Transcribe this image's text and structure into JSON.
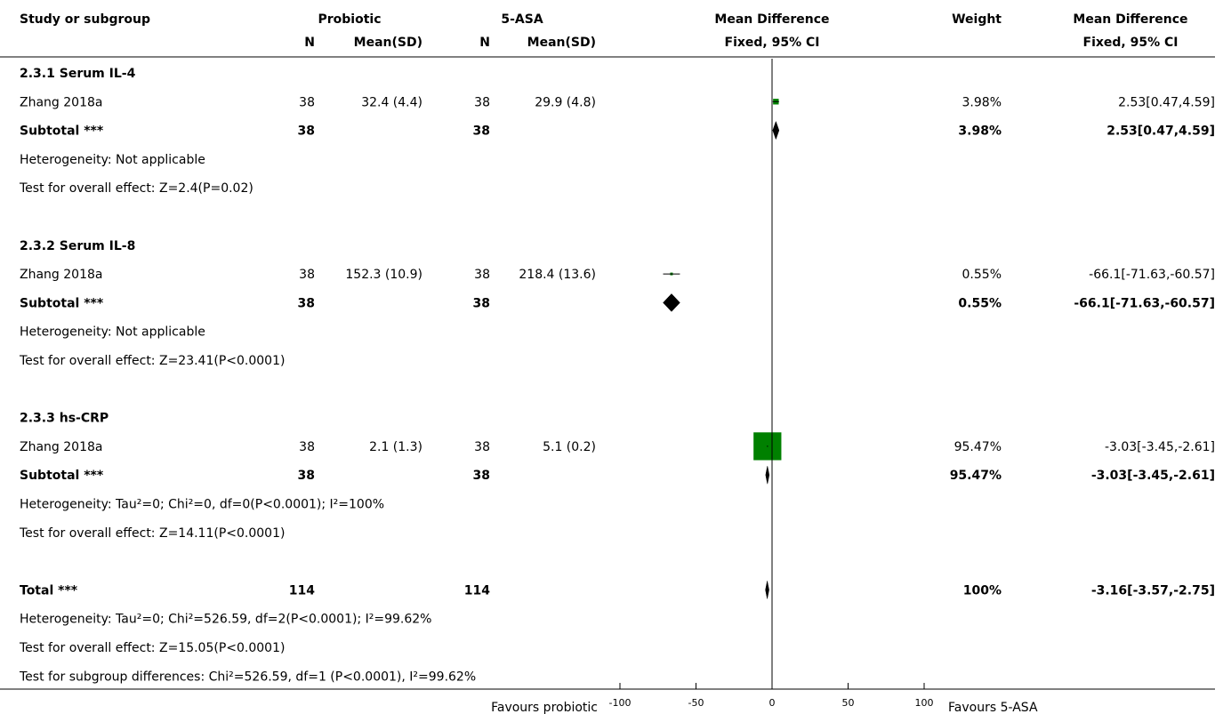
{
  "header": {
    "study": "Study or subgroup",
    "group1": "Probiotic",
    "group2": "5-ASA",
    "n": "N",
    "meansd": "Mean(SD)",
    "effect": "Mean Difference",
    "effect_sub": "Fixed, 95% CI",
    "weight": "Weight",
    "effect2": "Mean Difference",
    "effect2_sub": "Fixed, 95% CI"
  },
  "chart_data": {
    "type": "forest",
    "xlim": [
      -100,
      100
    ],
    "xticks": [
      "-100",
      "-50",
      "0",
      "50",
      "100"
    ],
    "favours_left": "Favours probiotic",
    "favours_right": "Favours 5-ASA",
    "rows": [
      {
        "kind": "group",
        "label": "2.3.1 Serum IL-4"
      },
      {
        "kind": "study",
        "label": "Zhang 2018a",
        "n1": "38",
        "m1": "32.4 (4.4)",
        "n2": "38",
        "m2": "29.9 (4.8)",
        "md": 2.53,
        "lo": 0.47,
        "hi": 4.59,
        "weight": "3.98%",
        "weight_val": 3.98,
        "ci": "2.53[0.47,4.59]"
      },
      {
        "kind": "subtotal",
        "label": "Subtotal ***",
        "n1": "38",
        "n2": "38",
        "md": 2.53,
        "lo": 0.47,
        "hi": 4.59,
        "weight": "3.98%",
        "ci": "2.53[0.47,4.59]"
      },
      {
        "kind": "note",
        "label": "Heterogeneity: Not applicable"
      },
      {
        "kind": "note",
        "label": "Test for overall effect: Z=2.4(P=0.02)"
      },
      {
        "kind": "spacer"
      },
      {
        "kind": "group",
        "label": "2.3.2 Serum IL-8"
      },
      {
        "kind": "study",
        "label": "Zhang 2018a",
        "n1": "38",
        "m1": "152.3 (10.9)",
        "n2": "38",
        "m2": "218.4 (13.6)",
        "md": -66.1,
        "lo": -71.63,
        "hi": -60.57,
        "weight": "0.55%",
        "weight_val": 0.55,
        "ci": "-66.1[-71.63,-60.57]"
      },
      {
        "kind": "subtotal",
        "label": "Subtotal ***",
        "n1": "38",
        "n2": "38",
        "md": -66.1,
        "lo": -71.63,
        "hi": -60.57,
        "weight": "0.55%",
        "ci": "-66.1[-71.63,-60.57]"
      },
      {
        "kind": "note",
        "label": "Heterogeneity: Not applicable"
      },
      {
        "kind": "note",
        "label": "Test for overall effect: Z=23.41(P<0.0001)"
      },
      {
        "kind": "spacer"
      },
      {
        "kind": "group",
        "label": "2.3.3 hs-CRP"
      },
      {
        "kind": "study",
        "label": "Zhang 2018a",
        "n1": "38",
        "m1": "2.1 (1.3)",
        "n2": "38",
        "m2": "5.1 (0.2)",
        "md": -3.03,
        "lo": -3.45,
        "hi": -2.61,
        "weight": "95.47%",
        "weight_val": 95.47,
        "ci": "-3.03[-3.45,-2.61]"
      },
      {
        "kind": "subtotal",
        "label": "Subtotal ***",
        "n1": "38",
        "n2": "38",
        "md": -3.03,
        "lo": -3.45,
        "hi": -2.61,
        "weight": "95.47%",
        "ci": "-3.03[-3.45,-2.61]"
      },
      {
        "kind": "note",
        "label": "Heterogeneity: Tau²=0; Chi²=0, df=0(P<0.0001); I²=100%"
      },
      {
        "kind": "note",
        "label": "Test for overall effect: Z=14.11(P<0.0001)"
      },
      {
        "kind": "spacer"
      },
      {
        "kind": "total",
        "label": "Total ***",
        "n1": "114",
        "n2": "114",
        "md": -3.16,
        "lo": -3.57,
        "hi": -2.75,
        "weight": "100%",
        "ci": "-3.16[-3.57,-2.75]"
      },
      {
        "kind": "note",
        "label": "Heterogeneity: Tau²=0; Chi²=526.59, df=2(P<0.0001); I²=99.62%"
      },
      {
        "kind": "note",
        "label": "Test for overall effect: Z=15.05(P<0.0001)"
      },
      {
        "kind": "note",
        "label": "Test for subgroup differences: Chi²=526.59, df=1 (P<0.0001), I²=99.62%"
      }
    ],
    "colors": {
      "study_box": "#008000",
      "diamond": "#000000",
      "line": "#000000"
    }
  }
}
